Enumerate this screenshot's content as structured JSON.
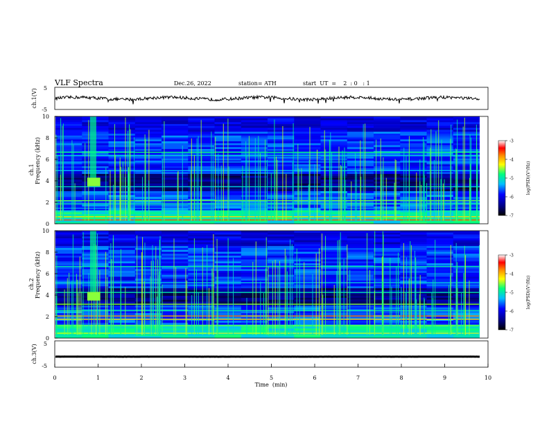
{
  "header": {
    "title": "VLF  Spectra",
    "date": "Dec.26, 2022",
    "station": "station= ATH",
    "start_ut": "start  UT  =    2  : 0   : 1"
  },
  "chart_data": [
    {
      "type": "line",
      "panel": "ch1-waveform",
      "ylabel": "ch.1(V)",
      "ylim": [
        -5,
        5
      ],
      "yticks": [
        "5",
        "-5"
      ],
      "xlim": [
        0,
        10
      ],
      "color": "#000000",
      "approx_value_V": 0
    },
    {
      "type": "heatmap",
      "panel": "ch1-spectrogram",
      "ylabel_top": "ch.1",
      "ylabel": "Frequency  (kHz)",
      "ylim": [
        0,
        10
      ],
      "yticks": [
        "0",
        "2",
        "4",
        "6",
        "8",
        "10"
      ],
      "xlim": [
        0,
        10
      ],
      "colorbar": {
        "label": "log(PSD)(V²/Hz)",
        "range": [
          -7,
          -3
        ],
        "ticks": [
          "-3",
          "-4",
          "-5",
          "-6",
          "-7"
        ]
      }
    },
    {
      "type": "heatmap",
      "panel": "ch2-spectrogram",
      "ylabel_top": "ch.2",
      "ylabel": "Frequency  (kHz)",
      "ylim": [
        0,
        10
      ],
      "yticks": [
        "0",
        "2",
        "4",
        "6",
        "8",
        "10"
      ],
      "xlim": [
        0,
        10
      ],
      "colorbar": {
        "label": "log(PSD)(V²/Hz)",
        "range": [
          -7,
          -3
        ],
        "ticks": [
          "-3",
          "-4",
          "-5",
          "-6",
          "-7"
        ]
      }
    },
    {
      "type": "line",
      "panel": "ch3-waveform",
      "ylabel": "ch.3(V)",
      "ylim": [
        -5,
        5
      ],
      "yticks": [
        "5",
        "-5"
      ],
      "xlim": [
        0,
        10
      ],
      "xticks": [
        "0",
        "1",
        "2",
        "3",
        "4",
        "5",
        "6",
        "7",
        "8",
        "9",
        "10"
      ],
      "xlabel": "Time  (min)",
      "color": "#000000",
      "approx_value_V": -1
    }
  ],
  "colors": {
    "background": "#ffffff",
    "axis": "#000000",
    "colormap": [
      "#000000",
      "#00008b",
      "#0000ff",
      "#00bfff",
      "#00ff7f",
      "#ffff00",
      "#ff8c00",
      "#ff0000",
      "#ffffff"
    ]
  }
}
